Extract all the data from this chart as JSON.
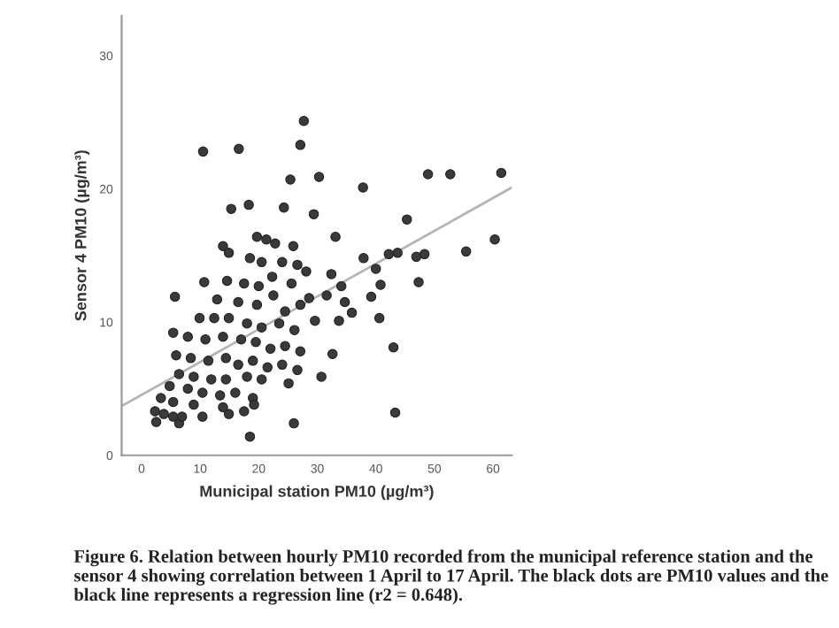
{
  "chart_data": {
    "type": "scatter",
    "xlabel": "Municipal station PM10 (µg/m³)",
    "ylabel": "Sensor 4 PM10 (µg/m³)",
    "xlim": [
      -3.4,
      63.2
    ],
    "ylim": [
      0,
      33
    ],
    "xticks": [
      0,
      10,
      20,
      30,
      40,
      50,
      60
    ],
    "yticks": [
      0,
      10,
      20,
      30
    ],
    "grid": false,
    "marker": "circle",
    "annotations": [
      "Figure 6. Relation between hourly PM10 recorded from the municipal reference station and the sensor 4 showing correlation between 1 April to 17 April. The black dots are PM10 values and the black line represents a regression line (r2 = 0.648)."
    ],
    "series": [
      {
        "color": "#3a3a3a",
        "x": [
          27.7,
          27.1,
          16.6,
          10.5,
          25.4,
          30.3,
          48.9,
          52.7,
          61.4,
          37.8,
          18.3,
          15.3,
          24.3,
          29.4,
          45.3,
          33.1,
          42.2,
          43.7,
          55.4,
          60.3,
          46.9,
          48.3,
          47.3,
          37.9,
          40.0,
          40.8,
          39.2,
          40.6,
          43.0,
          43.3,
          35.9,
          34.7,
          33.7,
          32.6,
          30.7,
          26.0,
          18.5,
          5.7,
          10.7,
          2.3,
          2.5,
          6.4,
          19.7,
          21.3,
          22.8,
          25.9,
          13.9,
          14.9,
          18.5,
          20.5,
          24.0,
          26.6,
          28.1,
          14.6,
          17.5,
          20.0,
          22.3,
          25.6,
          12.9,
          16.5,
          19.7,
          22.5,
          24.5,
          27.1,
          28.6,
          29.6,
          9.9,
          12.4,
          14.9,
          18.0,
          20.5,
          23.5,
          26.1,
          5.4,
          7.9,
          10.9,
          13.9,
          17.0,
          19.5,
          22.0,
          24.5,
          27.1,
          8.4,
          11.4,
          14.4,
          16.5,
          19.0,
          21.5,
          24.0,
          26.6,
          5.9,
          6.4,
          8.9,
          11.9,
          14.4,
          18.0,
          20.5,
          25.1,
          4.8,
          7.9,
          10.4,
          13.4,
          16.0,
          19.0,
          3.3,
          5.4,
          8.9,
          13.9,
          17.5,
          3.8,
          5.4,
          6.9,
          10.4,
          14.9,
          19.2,
          32.4,
          34.1,
          31.6
        ],
        "values": [
          25.1,
          23.3,
          23.0,
          22.8,
          20.7,
          20.9,
          21.1,
          21.1,
          21.2,
          20.1,
          18.8,
          18.5,
          18.6,
          18.1,
          17.7,
          16.4,
          15.1,
          15.2,
          15.3,
          16.2,
          14.9,
          15.1,
          13.0,
          14.8,
          14.0,
          12.8,
          11.9,
          10.3,
          8.1,
          3.2,
          10.7,
          11.5,
          10.1,
          7.6,
          5.9,
          2.4,
          1.4,
          11.9,
          13.0,
          3.3,
          2.5,
          2.4,
          16.4,
          16.2,
          15.9,
          15.7,
          15.7,
          15.2,
          14.8,
          14.5,
          14.5,
          14.3,
          13.8,
          13.1,
          12.9,
          12.7,
          13.4,
          12.9,
          11.7,
          11.5,
          11.3,
          12.0,
          10.8,
          11.3,
          11.8,
          10.1,
          10.3,
          10.3,
          10.3,
          9.9,
          9.6,
          9.9,
          9.4,
          9.2,
          8.9,
          8.7,
          8.9,
          8.7,
          8.5,
          8.0,
          8.2,
          7.8,
          7.3,
          7.1,
          7.3,
          6.8,
          7.1,
          6.6,
          6.8,
          6.4,
          7.5,
          6.1,
          5.9,
          5.7,
          5.7,
          5.9,
          5.7,
          5.4,
          5.2,
          5.0,
          4.7,
          4.5,
          4.7,
          4.3,
          4.3,
          4.0,
          3.8,
          3.6,
          3.3,
          3.1,
          2.9,
          2.9,
          2.9,
          3.1,
          3.8,
          13.6,
          12.7,
          12.0
        ]
      },
      {
        "type": "line",
        "color": "#b4b4b4",
        "marker": "none",
        "line_style": "solid",
        "x": [
          -3.4,
          63.2
        ],
        "values": [
          3.7,
          20.1
        ]
      }
    ]
  }
}
